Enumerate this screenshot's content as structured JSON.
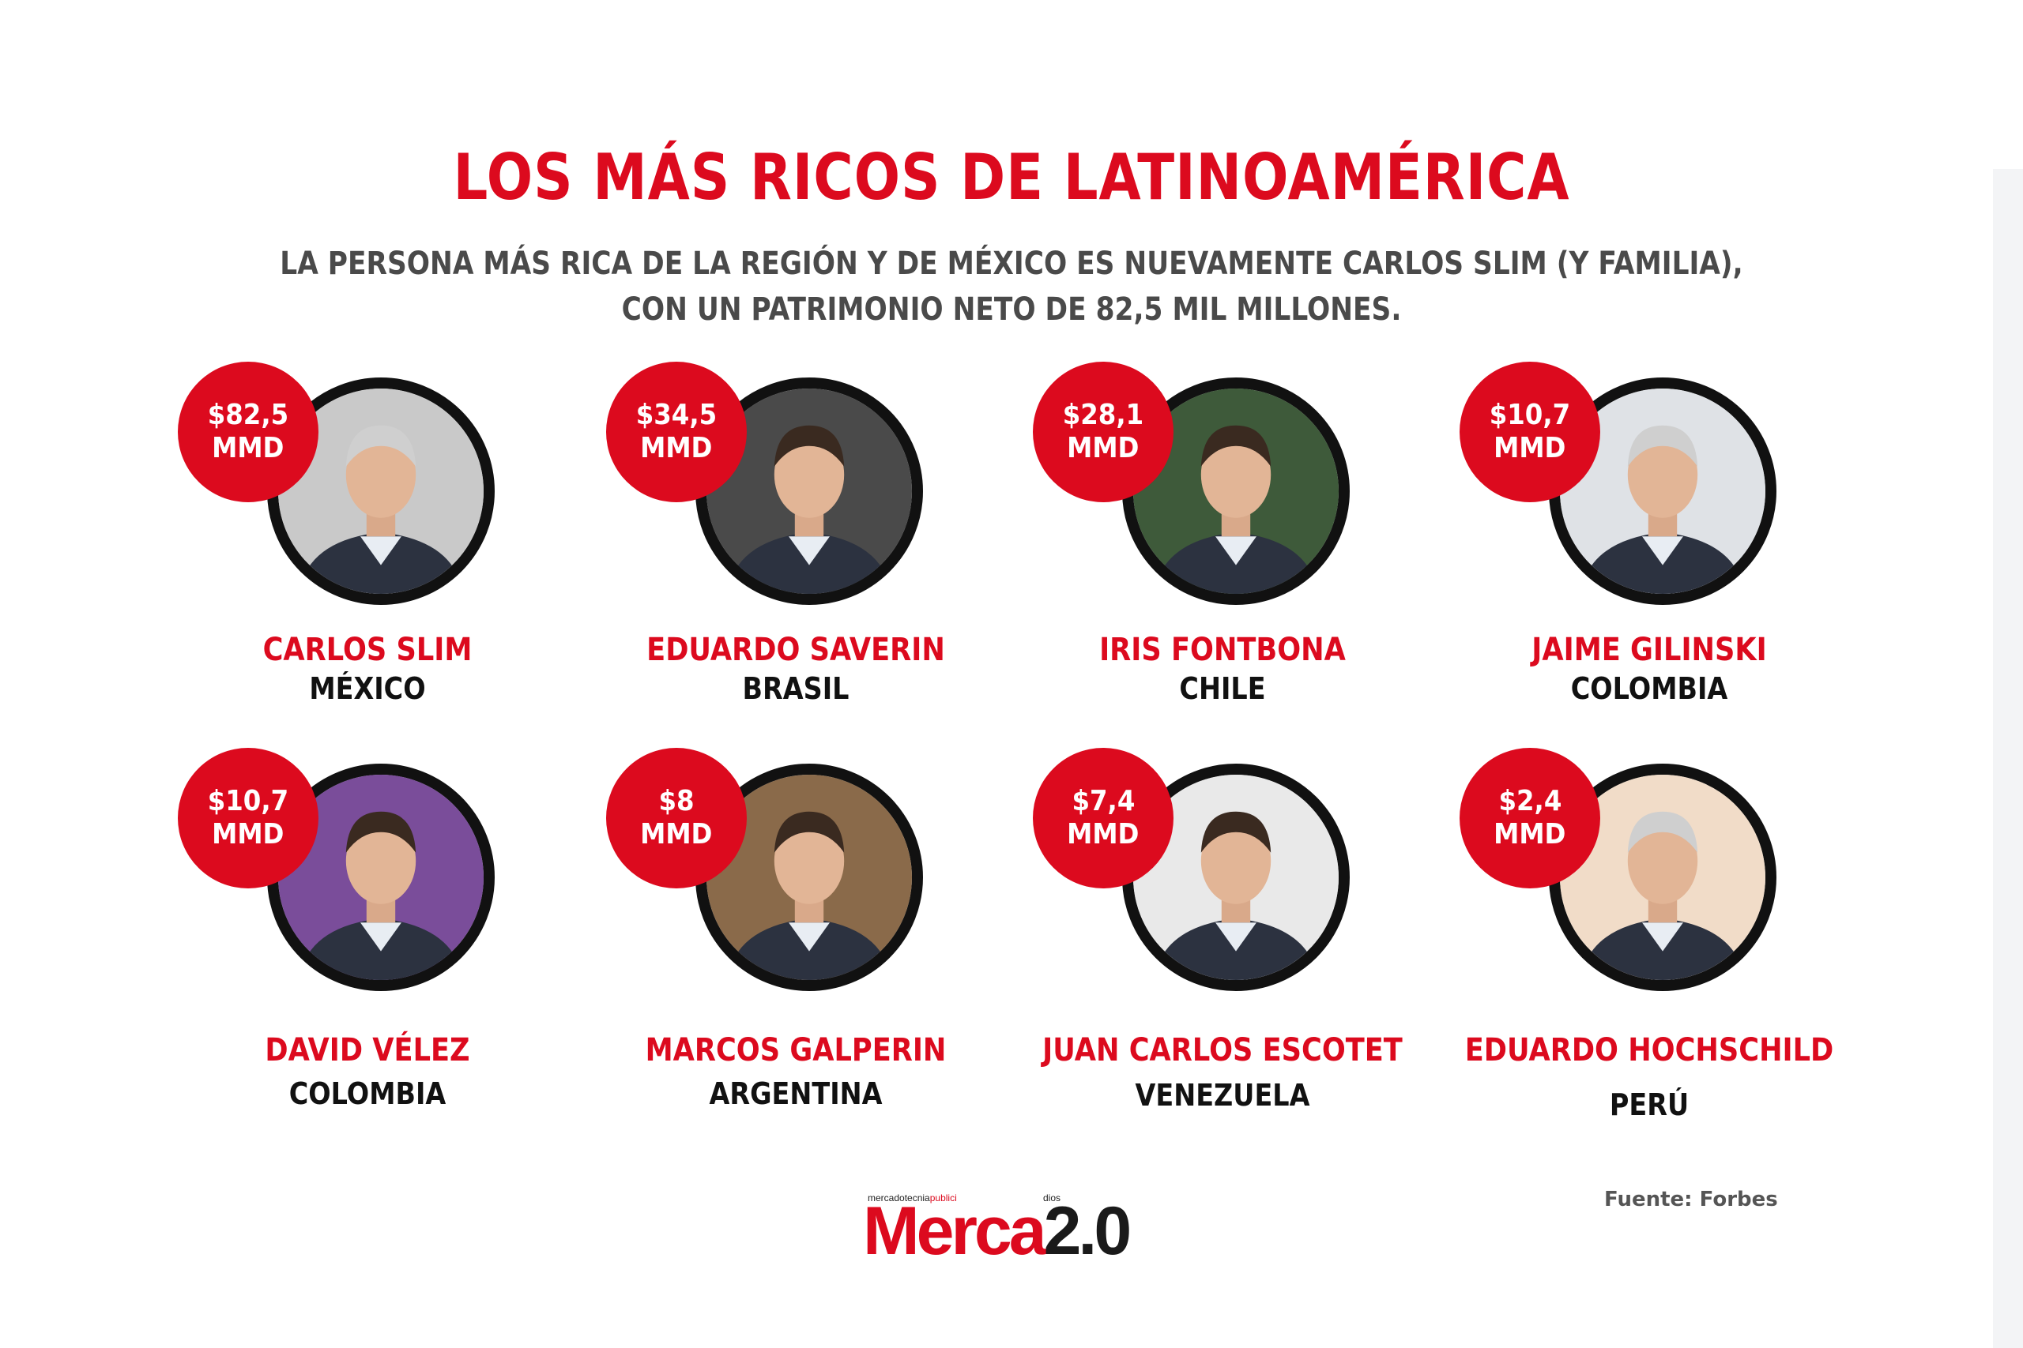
{
  "header": {
    "title": "LOS MÁS RICOS DE LATINOAMÉRICA",
    "subtitle_line1": "LA PERSONA MÁS RICA DE LA REGIÓN Y DE MÉXICO ES NUEVAMENTE CARLOS SLIM (Y FAMILIA),",
    "subtitle_line2": "CON UN PATRIMONIO NETO DE 82,5 MIL MILLONES."
  },
  "people": [
    {
      "value": "$82,5",
      "unit": "MMD",
      "name": "CARLOS SLIM",
      "country": "MÉXICO",
      "bg": "#c9c9c9"
    },
    {
      "value": "$34,5",
      "unit": "MMD",
      "name": "EDUARDO SAVERIN",
      "country": "BRASIL",
      "bg": "#4a4a4a"
    },
    {
      "value": "$28,1",
      "unit": "MMD",
      "name": "IRIS FONTBONA",
      "country": "CHILE",
      "bg": "#3e5a3a"
    },
    {
      "value": "$10,7",
      "unit": "MMD",
      "name": "JAIME GILINSKI",
      "country": "COLOMBIA",
      "bg": "#dfe2e6"
    },
    {
      "value": "$10,7",
      "unit": "MMD",
      "name": "DAVID VÉLEZ",
      "country": "COLOMBIA",
      "bg": "#7a4d9a"
    },
    {
      "value": "$8",
      "unit": "MMD",
      "name": "MARCOS GALPERIN",
      "country": "ARGENTINA",
      "bg": "#8a6a4a"
    },
    {
      "value": "$7,4",
      "unit": "MMD",
      "name": "JUAN CARLOS ESCOTET",
      "country": "VENEZUELA",
      "bg": "#e9e9e9"
    },
    {
      "value": "$2,4",
      "unit": "MMD",
      "name": "EDUARDO HOCHSCHILD",
      "country": "PERÚ",
      "bg": "#f1dcc8"
    }
  ],
  "footer": {
    "logo_tagline_a": "mercadotecnia",
    "logo_tagline_b": "publici",
    "logo_tagline_c": "dios",
    "logo_word": "Merca",
    "logo_version": "2.0",
    "source": "Fuente: Forbes"
  }
}
